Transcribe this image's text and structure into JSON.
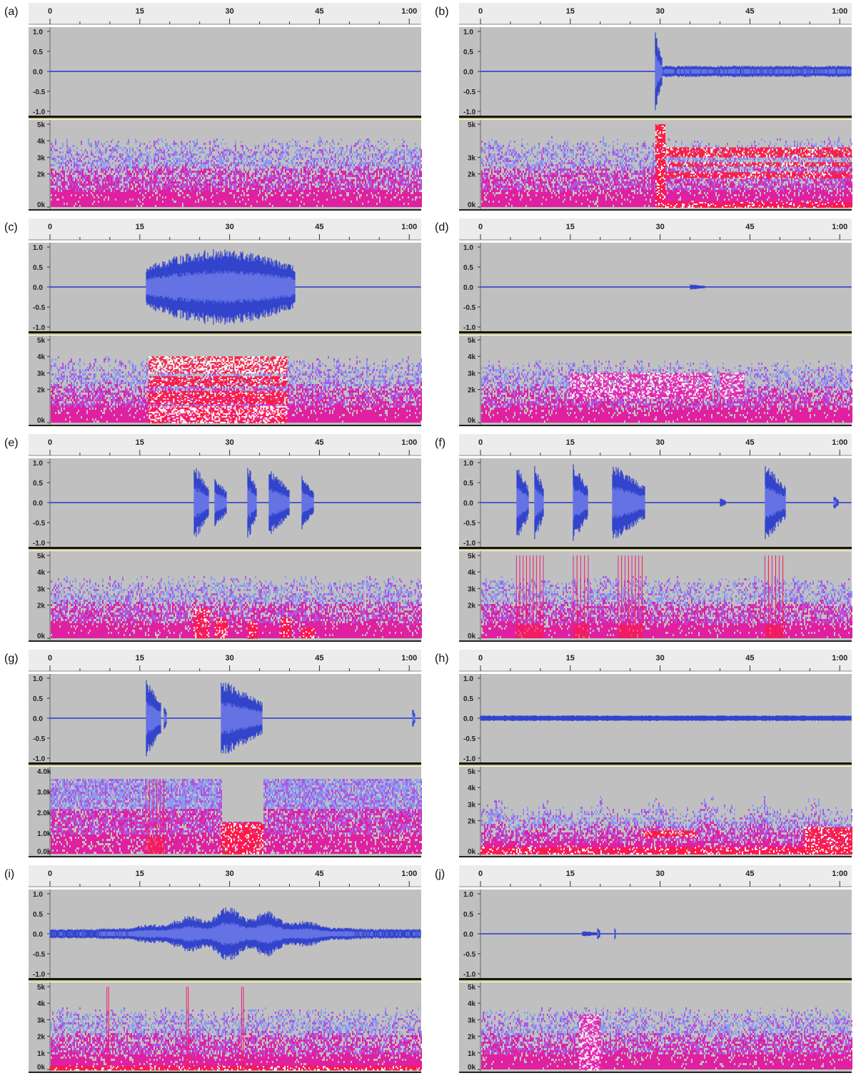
{
  "colors": {
    "track_bg": "#c0c0c0",
    "ruler_bg": "#ececec",
    "waveform": "#3344cc",
    "waveform_rms": "#6a78e6",
    "separator": "#141414",
    "separator_accent": "#c9c37a",
    "spec_low": "#e020a0",
    "spec_mid": "#b055e0",
    "spec_high": "#8a9cf0",
    "spec_hot": "#ff1840",
    "spec_white": "#ffffff"
  },
  "time_axis_labels": [
    "0",
    "15",
    "30",
    "45",
    "1:00"
  ],
  "amplitude_labels": [
    "1.0",
    "0.5",
    "0.0",
    "-0.5",
    "-1.0"
  ],
  "chart_data": [
    {
      "type": "waveform+spectrogram",
      "panel_label": "(a)",
      "time_ticks": [
        "0",
        "15",
        "30",
        "45",
        "1:00"
      ],
      "amplitude_ticks": [
        "1.0",
        "0.5",
        "0.0",
        "-0.5",
        "-1.0"
      ],
      "freq_ticks": [
        "5k",
        "4k",
        "3k",
        "2k",
        "0k"
      ],
      "noise_top_khz": 3.8,
      "events": [],
      "bands": []
    },
    {
      "type": "waveform+spectrogram",
      "panel_label": "(b)",
      "time_ticks": [
        "0",
        "15",
        "30",
        "45",
        "1:00"
      ],
      "amplitude_ticks": [
        "1.0",
        "0.5",
        "0.0",
        "-0.5",
        "-1.0"
      ],
      "freq_ticks": [
        "5k",
        "3k",
        "2k",
        "0k"
      ],
      "noise_top_khz": 3.8,
      "events": [
        {
          "start_s": 29.2,
          "end_s": 30.3,
          "amp": 1.0
        },
        {
          "start_s": 30.3,
          "end_s": 62,
          "amp": 0.12,
          "style": "dense"
        }
      ],
      "bands": [
        {
          "start_s": 30.3,
          "end_s": 62,
          "f_low_khz": 3.0,
          "f_high_khz": 3.6
        },
        {
          "start_s": 30.3,
          "end_s": 62,
          "f_low_khz": 2.5,
          "f_high_khz": 2.7
        },
        {
          "start_s": 30.3,
          "end_s": 62,
          "f_low_khz": 1.8,
          "f_high_khz": 2.1
        },
        {
          "start_s": 30.3,
          "end_s": 62,
          "f_low_khz": 0.0,
          "f_high_khz": 0.3
        },
        {
          "start_s": 29.2,
          "end_s": 30.8,
          "f_low_khz": 0.0,
          "f_high_khz": 5.0
        }
      ]
    },
    {
      "type": "waveform+spectrogram",
      "panel_label": "(c)",
      "time_ticks": [
        "0",
        "15",
        "30",
        "45",
        "1:00"
      ],
      "amplitude_ticks": [
        "1.0",
        "0.5",
        "0.0",
        "-0.5",
        "-1.0"
      ],
      "freq_ticks": [
        "5k",
        "4k",
        "3k",
        "2k",
        "0k"
      ],
      "noise_top_khz": 3.6,
      "events": [
        {
          "start_s": 16,
          "end_s": 41,
          "amp": 0.95,
          "style": "envelope"
        }
      ],
      "bands": [
        {
          "start_s": 16.5,
          "end_s": 39.5,
          "f_low_khz": 3.0,
          "f_high_khz": 4.0,
          "white": true
        },
        {
          "start_s": 16.5,
          "end_s": 39.5,
          "f_low_khz": 2.2,
          "f_high_khz": 2.8
        },
        {
          "start_s": 16.5,
          "end_s": 39.5,
          "f_low_khz": 1.2,
          "f_high_khz": 1.9
        },
        {
          "start_s": 16.5,
          "end_s": 39.5,
          "f_low_khz": 0.0,
          "f_high_khz": 1.0,
          "white": true
        }
      ]
    },
    {
      "type": "waveform+spectrogram",
      "panel_label": "(d)",
      "time_ticks": [
        "0",
        "15",
        "30",
        "45",
        "1:00"
      ],
      "amplitude_ticks": [
        "1.0",
        "0.5",
        "0.0",
        "-0.5",
        "-1.0"
      ],
      "freq_ticks": [
        "5k",
        "4k",
        "3k",
        "2k",
        "0k"
      ],
      "noise_top_khz": 3.4,
      "events": [
        {
          "start_s": 35,
          "end_s": 37.5,
          "amp": 0.06
        }
      ],
      "bands": [
        {
          "start_s": 15,
          "end_s": 38.5,
          "f_low_khz": 1.5,
          "f_high_khz": 3.0,
          "magenta": true
        },
        {
          "start_s": 40,
          "end_s": 44,
          "f_low_khz": 1.5,
          "f_high_khz": 3.0,
          "magenta": true
        }
      ]
    },
    {
      "type": "waveform+spectrogram",
      "panel_label": "(e)",
      "time_ticks": [
        "0",
        "15",
        "30",
        "45",
        "1:00"
      ],
      "amplitude_ticks": [
        "1.0",
        "0.5",
        "0.0",
        "-0.5",
        "-1.0"
      ],
      "freq_ticks": [
        "5k",
        "4k",
        "3k",
        "2k",
        "0k"
      ],
      "noise_top_khz": 3.4,
      "events": [
        {
          "start_s": 24,
          "end_s": 26.5,
          "amp": 1.0
        },
        {
          "start_s": 27.5,
          "end_s": 29.5,
          "amp": 0.7
        },
        {
          "start_s": 33,
          "end_s": 34.5,
          "amp": 1.0
        },
        {
          "start_s": 36.5,
          "end_s": 40,
          "amp": 0.9
        },
        {
          "start_s": 42,
          "end_s": 44,
          "amp": 0.7
        }
      ],
      "bands": [
        {
          "start_s": 24,
          "end_s": 26.5,
          "f_low_khz": 0.0,
          "f_high_khz": 1.8
        },
        {
          "start_s": 27.5,
          "end_s": 29.5,
          "f_low_khz": 0.0,
          "f_high_khz": 1.2
        },
        {
          "start_s": 33,
          "end_s": 34.5,
          "f_low_khz": 0.0,
          "f_high_khz": 1.0
        },
        {
          "start_s": 38.5,
          "end_s": 40,
          "f_low_khz": 0.0,
          "f_high_khz": 1.2
        },
        {
          "start_s": 42,
          "end_s": 44,
          "f_low_khz": 0.0,
          "f_high_khz": 0.6
        }
      ]
    },
    {
      "type": "waveform+spectrogram",
      "panel_label": "(f)",
      "time_ticks": [
        "0",
        "15",
        "30",
        "45",
        "1:00"
      ],
      "amplitude_ticks": [
        "1.0",
        "0.5",
        "0.0",
        "-0.5",
        "-1.0"
      ],
      "freq_ticks": [
        "5k",
        "4k",
        "3k",
        "2k",
        "0k"
      ],
      "noise_top_khz": 3.4,
      "events": [
        {
          "start_s": 6,
          "end_s": 8,
          "amp": 1.0
        },
        {
          "start_s": 9,
          "end_s": 10.5,
          "amp": 1.0
        },
        {
          "start_s": 15.5,
          "end_s": 18,
          "amp": 1.0
        },
        {
          "start_s": 22,
          "end_s": 27.5,
          "amp": 1.0
        },
        {
          "start_s": 40,
          "end_s": 41,
          "amp": 0.1
        },
        {
          "start_s": 47.5,
          "end_s": 51,
          "amp": 1.0
        },
        {
          "start_s": 59,
          "end_s": 59.8,
          "amp": 0.15
        }
      ],
      "bands": [
        {
          "start_s": 6,
          "end_s": 10.5,
          "f_low_khz": 0.0,
          "f_high_khz": 5.0,
          "lines": true
        },
        {
          "start_s": 15.5,
          "end_s": 18,
          "f_low_khz": 0.0,
          "f_high_khz": 5.0,
          "lines": true
        },
        {
          "start_s": 23,
          "end_s": 27,
          "f_low_khz": 0.0,
          "f_high_khz": 5.0,
          "lines": true
        },
        {
          "start_s": 47.5,
          "end_s": 50.5,
          "f_low_khz": 0.0,
          "f_high_khz": 5.0,
          "lines": true
        }
      ]
    },
    {
      "type": "waveform+spectrogram",
      "panel_label": "(g)",
      "time_ticks": [
        "0",
        "15",
        "30",
        "45",
        "1:00"
      ],
      "amplitude_ticks": [
        "1.0",
        "0.5",
        "0.0",
        "-0.5",
        "-1.0"
      ],
      "freq_ticks": [
        "4.0k",
        "3.0k",
        "2.0k",
        "1.0k",
        "0.0k"
      ],
      "freq_max_khz": 4.0,
      "noise_top_khz": 3.6,
      "noise_flat": true,
      "events": [
        {
          "start_s": 16,
          "end_s": 18.5,
          "amp": 1.0
        },
        {
          "start_s": 19,
          "end_s": 19.5,
          "amp": 0.3
        },
        {
          "start_s": 28.5,
          "end_s": 35.5,
          "amp": 1.0
        },
        {
          "start_s": 60.5,
          "end_s": 61,
          "amp": 0.25
        }
      ],
      "gap": {
        "start_s": 28.5,
        "end_s": 35.5,
        "f_top_khz": 1.5
      },
      "bands": [
        {
          "start_s": 16,
          "end_s": 19,
          "f_low_khz": 0.0,
          "f_high_khz": 3.6,
          "lines": true
        },
        {
          "start_s": 28.5,
          "end_s": 35.5,
          "f_low_khz": 0.0,
          "f_high_khz": 1.5
        }
      ]
    },
    {
      "type": "waveform+spectrogram",
      "panel_label": "(h)",
      "time_ticks": [
        "0",
        "15",
        "30",
        "45",
        "1:00"
      ],
      "amplitude_ticks": [
        "1.0",
        "0.5",
        "0.0",
        "-0.5",
        "-1.0"
      ],
      "freq_ticks": [
        "5k",
        "4k",
        "3k",
        "2k",
        "0k"
      ],
      "noise_top_khz": 2.6,
      "noise_patchy": true,
      "events": [
        {
          "start_s": 0,
          "end_s": 62,
          "amp": 0.06,
          "style": "dense"
        }
      ],
      "bands": [
        {
          "start_s": 0,
          "end_s": 62,
          "f_low_khz": 0.0,
          "f_high_khz": 0.4
        },
        {
          "start_s": 27,
          "end_s": 36,
          "f_low_khz": 1.0,
          "f_high_khz": 1.4
        },
        {
          "start_s": 54,
          "end_s": 62,
          "f_low_khz": 0.0,
          "f_high_khz": 1.6
        }
      ]
    },
    {
      "type": "waveform+spectrogram",
      "panel_label": "(i)",
      "time_ticks": [
        "0",
        "15",
        "30",
        "45",
        "1:00"
      ],
      "amplitude_ticks": [
        "1.0",
        "0.5",
        "0.0",
        "-0.5",
        "-1.0"
      ],
      "freq_ticks": [
        "5k",
        "4k",
        "3k",
        "2k",
        "1k",
        "0k"
      ],
      "noise_top_khz": 3.4,
      "events": [
        {
          "start_s": 0,
          "end_s": 62,
          "amp": 0.9,
          "style": "swell"
        }
      ],
      "bands": [
        {
          "start_s": 0,
          "end_s": 62,
          "f_low_khz": 0.0,
          "f_high_khz": 0.2
        },
        {
          "start_s": 9.5,
          "end_s": 9.8,
          "f_low_khz": 0.0,
          "f_high_khz": 5.0,
          "lines": true
        },
        {
          "start_s": 22.8,
          "end_s": 23.1,
          "f_low_khz": 0.0,
          "f_high_khz": 5.0,
          "lines": true
        },
        {
          "start_s": 32,
          "end_s": 32.3,
          "f_low_khz": 0.0,
          "f_high_khz": 5.0,
          "lines": true
        }
      ]
    },
    {
      "type": "waveform+spectrogram",
      "panel_label": "(j)",
      "time_ticks": [
        "0",
        "15",
        "30",
        "45",
        "1:00"
      ],
      "amplitude_ticks": [
        "1.0",
        "0.5",
        "0.0",
        "-0.5",
        "-1.0"
      ],
      "freq_ticks": [
        "5k",
        "4k",
        "3k",
        "2k",
        "1k",
        "0k"
      ],
      "noise_top_khz": 3.4,
      "events": [
        {
          "start_s": 17,
          "end_s": 20,
          "amp": 0.06
        },
        {
          "start_s": 19.5,
          "end_s": 20,
          "amp": 0.15
        },
        {
          "start_s": 22.3,
          "end_s": 22.6,
          "amp": 0.2
        }
      ],
      "bands": [
        {
          "start_s": 16.5,
          "end_s": 20,
          "f_low_khz": 0.0,
          "f_high_khz": 3.3,
          "magenta": true
        }
      ]
    }
  ]
}
